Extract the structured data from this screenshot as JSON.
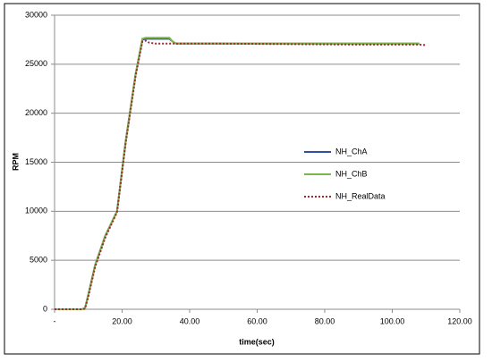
{
  "chart_data": {
    "type": "line",
    "xlabel": "time(sec)",
    "ylabel": "RPM",
    "x": [
      0,
      5,
      8,
      9,
      10,
      12,
      15,
      18.5,
      21,
      24,
      26,
      27,
      28,
      30,
      34,
      35,
      36,
      50,
      70,
      90,
      108,
      110
    ],
    "series": [
      {
        "name": "NH_ChA",
        "color": "#2f4fa8",
        "style": "solid",
        "values": [
          0,
          0,
          0,
          100,
          1500,
          4500,
          7500,
          10000,
          17000,
          24000,
          27500,
          27600,
          27600,
          27600,
          27600,
          27300,
          27100,
          27100,
          27100,
          27100,
          27100,
          null
        ]
      },
      {
        "name": "NH_ChB",
        "color": "#7ab648",
        "style": "solid",
        "values": [
          0,
          0,
          0,
          100,
          1500,
          4500,
          7500,
          10000,
          17000,
          24000,
          27600,
          27700,
          27700,
          27700,
          27700,
          27300,
          27100,
          27100,
          27100,
          27100,
          27100,
          null
        ]
      },
      {
        "name": "NH_RealData",
        "color": "#a0282c",
        "style": "dotted",
        "values": [
          0,
          0,
          0,
          50,
          1300,
          4300,
          7300,
          9900,
          16800,
          23800,
          27300,
          27400,
          27200,
          27100,
          27100,
          27100,
          27100,
          27100,
          27050,
          27000,
          27000,
          26950
        ]
      }
    ],
    "xlim": [
      0,
      120
    ],
    "xticks": [
      {
        "value": 0,
        "label": "-"
      },
      {
        "value": 20,
        "label": "20.00"
      },
      {
        "value": 40,
        "label": "40.00"
      },
      {
        "value": 60,
        "label": "60.00"
      },
      {
        "value": 80,
        "label": "80.00"
      },
      {
        "value": 100,
        "label": "100.00"
      },
      {
        "value": 120,
        "label": "120.00"
      }
    ],
    "ylim": [
      0,
      30000
    ],
    "yticks": [
      0,
      5000,
      10000,
      15000,
      20000,
      25000,
      30000
    ],
    "grid": true,
    "legend": "right"
  }
}
